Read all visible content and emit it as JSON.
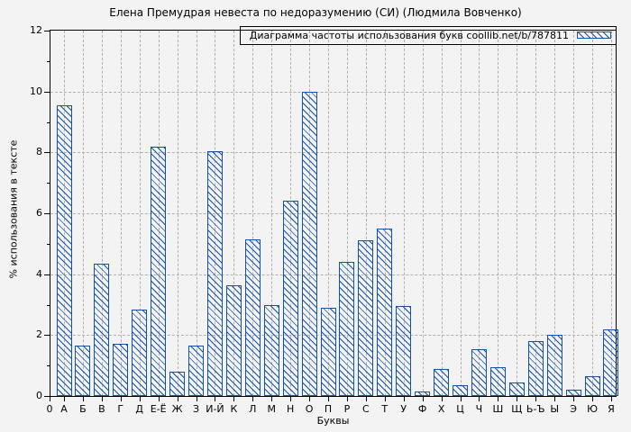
{
  "title": "Елена Премудрая невеста по недоразумению (СИ) (Людмила Вовченко)",
  "legend": {
    "label": "Диаграмма частоты использования букв coollib.net/b/787811"
  },
  "axes": {
    "y_label": "% использования в тексте",
    "x_label": "Буквы",
    "origin_label": "0"
  },
  "colors": {
    "bar_blue": "#1451a8",
    "grid_gray": "#b0b0b0",
    "background": "#f3f3f3",
    "axis_black": "#000000"
  },
  "chart_data": {
    "type": "bar",
    "title": "Елена Премудрая невеста по недоразумению (СИ) (Людмила Вовченко)",
    "legend_entry": "Диаграмма частоты использования букв coollib.net/b/787811",
    "legend_position": "top-right",
    "grid": true,
    "xlabel": "Буквы",
    "ylabel": "% использования в тексте",
    "ylim": [
      0,
      12
    ],
    "y_ticks": [
      0,
      2,
      4,
      6,
      8,
      10,
      12
    ],
    "categories": [
      "А",
      "Б",
      "В",
      "Г",
      "Д",
      "Е-Ё",
      "Ж",
      "З",
      "И-Й",
      "К",
      "Л",
      "М",
      "Н",
      "О",
      "П",
      "Р",
      "С",
      "Т",
      "У",
      "Ф",
      "Х",
      "Ц",
      "Ч",
      "Ш",
      "Щ",
      "Ь-Ъ",
      "Ы",
      "Э",
      "Ю",
      "Я"
    ],
    "values": [
      9.55,
      1.65,
      4.35,
      1.7,
      2.85,
      8.2,
      0.8,
      1.65,
      8.05,
      3.65,
      5.15,
      3.0,
      6.4,
      10.0,
      2.9,
      4.4,
      5.1,
      5.5,
      2.95,
      0.15,
      0.9,
      0.35,
      1.55,
      0.95,
      0.45,
      1.8,
      2.0,
      0.2,
      0.65,
      2.2
    ]
  }
}
